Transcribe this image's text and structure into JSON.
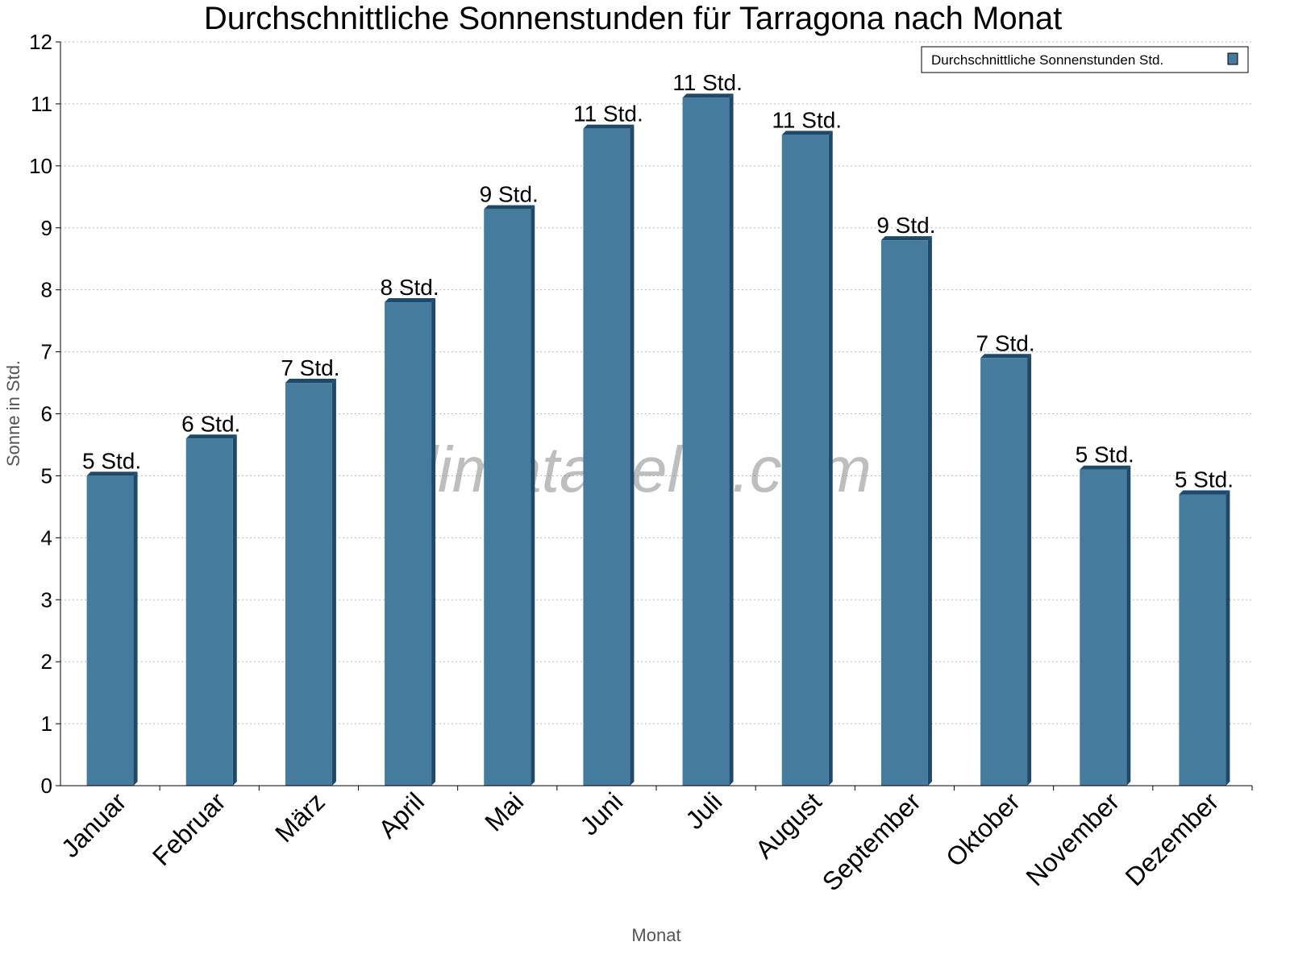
{
  "chart_data": {
    "type": "bar",
    "title": "Durchschnittliche Sonnenstunden für Tarragona nach Monat",
    "xlabel": "Monat",
    "ylabel": "Sonne in Std.",
    "ylim": [
      0,
      12
    ],
    "yticks": [
      "0",
      "1",
      "2",
      "3",
      "4",
      "5",
      "6",
      "7",
      "8",
      "9",
      "10",
      "11",
      "12"
    ],
    "grid": true,
    "legend_position": "top-right",
    "categories": [
      "Januar",
      "Februar",
      "März",
      "April",
      "Mai",
      "Juni",
      "Juli",
      "August",
      "September",
      "Oktober",
      "November",
      "Dezember"
    ],
    "series": [
      {
        "name": "Durchschnittliche Sonnenstunden Std.",
        "values": [
          5.0,
          5.6,
          6.5,
          7.8,
          9.3,
          10.6,
          11.1,
          10.5,
          8.8,
          6.9,
          5.1,
          4.7
        ],
        "data_labels": [
          "5 Std.",
          "6 Std.",
          "7 Std.",
          "8 Std.",
          "9 Std.",
          "11 Std.",
          "11 Std.",
          "11 Std.",
          "9 Std.",
          "7 Std.",
          "5 Std.",
          "5 Std."
        ],
        "color": "#457b9d",
        "shade_color": "#1d4a6b"
      }
    ],
    "watermark": "klimatabelle.com"
  }
}
